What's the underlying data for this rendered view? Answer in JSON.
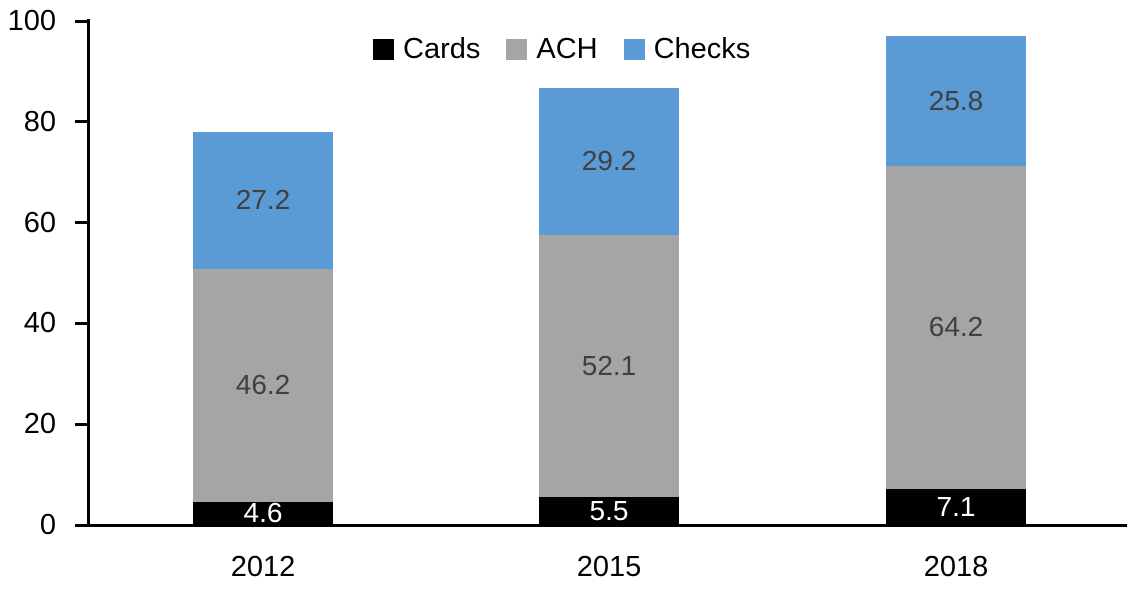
{
  "chart_data": {
    "type": "bar",
    "stacked": true,
    "title": "",
    "xlabel": "",
    "ylabel": "",
    "categories": [
      "2012",
      "2015",
      "2018"
    ],
    "series": [
      {
        "name": "Cards",
        "values": [
          4.6,
          5.5,
          7.1
        ],
        "color": "#000000",
        "label_color": "#ffffff"
      },
      {
        "name": "ACH",
        "values": [
          46.2,
          52.1,
          64.2
        ],
        "color": "#A5A5A5",
        "label_color": "#404040"
      },
      {
        "name": "Checks",
        "values": [
          27.2,
          29.2,
          25.8
        ],
        "color": "#5B9BD5",
        "label_color": "#404040"
      }
    ],
    "ylim": [
      0,
      100
    ],
    "yticks": [
      0,
      20,
      40,
      60,
      80,
      100
    ],
    "grid": false,
    "data_labels": true,
    "legend_position": "top",
    "axis_color": "#000000"
  }
}
